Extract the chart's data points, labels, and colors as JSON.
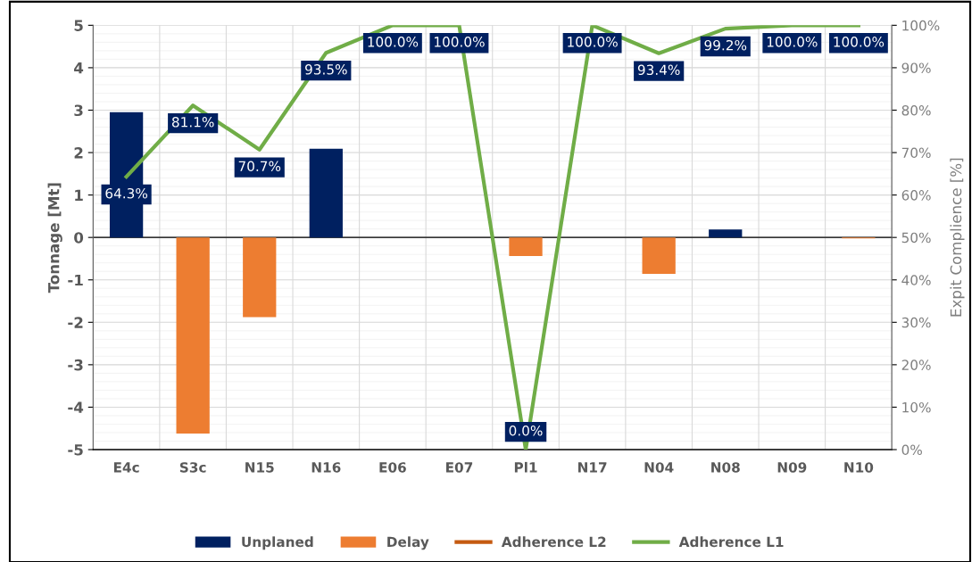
{
  "chart_data": {
    "type": "bar",
    "ylabel": "Tonnage [Mt]",
    "y2label": "Expit Complience [%]",
    "categories": [
      "E4c",
      "S3c",
      "N15",
      "N16",
      "E06",
      "E07",
      "Pl1",
      "N17",
      "N04",
      "N08",
      "N09",
      "N10"
    ],
    "series": [
      {
        "name": "Unplaned",
        "color": "#002060",
        "values": [
          2.95,
          null,
          null,
          2.09,
          null,
          null,
          null,
          null,
          null,
          0.19,
          null,
          null
        ]
      },
      {
        "name": "Delay",
        "color": "#ed7d31",
        "values": [
          null,
          -4.62,
          -1.88,
          null,
          null,
          null,
          -0.44,
          null,
          -0.86,
          null,
          null,
          -0.02
        ]
      },
      {
        "name": "Adherence L2",
        "type": "line",
        "axis": "y2",
        "color": "#c55a11",
        "values": [
          null,
          null,
          null,
          null,
          null,
          null,
          null,
          null,
          null,
          null,
          null,
          null
        ]
      },
      {
        "name": "Adherence L1",
        "type": "line",
        "axis": "y2",
        "color": "#70ad47",
        "values": [
          64.3,
          81.1,
          70.7,
          93.5,
          100,
          100,
          0,
          100,
          93.4,
          99.2,
          100,
          100
        ],
        "value_labels": [
          "64.3%",
          "81.1%",
          "70.7%",
          "93.5%",
          "100.0%",
          "100.0%",
          "0.0%",
          "100.0%",
          "93.4%",
          "99.2%",
          "100.0%",
          "100.0%"
        ]
      }
    ],
    "ylim": [
      -5,
      5
    ],
    "yticks": [
      -5,
      -4,
      -3,
      -2,
      -1,
      0,
      1,
      2,
      3,
      4,
      5
    ],
    "y2lim": [
      0,
      100
    ],
    "y2ticks": [
      {
        "value": 0,
        "label": "0%"
      },
      {
        "value": 10,
        "label": "10%"
      },
      {
        "value": 20,
        "label": "20%"
      },
      {
        "value": 30,
        "label": "30%"
      },
      {
        "value": 40,
        "label": "40%"
      },
      {
        "value": 50,
        "label": "50%"
      },
      {
        "value": 60,
        "label": "60%"
      },
      {
        "value": 70,
        "label": "70%"
      },
      {
        "value": 80,
        "label": "80%"
      },
      {
        "value": 90,
        "label": "90%"
      },
      {
        "value": 100,
        "label": "100%"
      }
    ],
    "grid": true,
    "legend": "bottom",
    "marker": "none",
    "line_style": "solid"
  }
}
